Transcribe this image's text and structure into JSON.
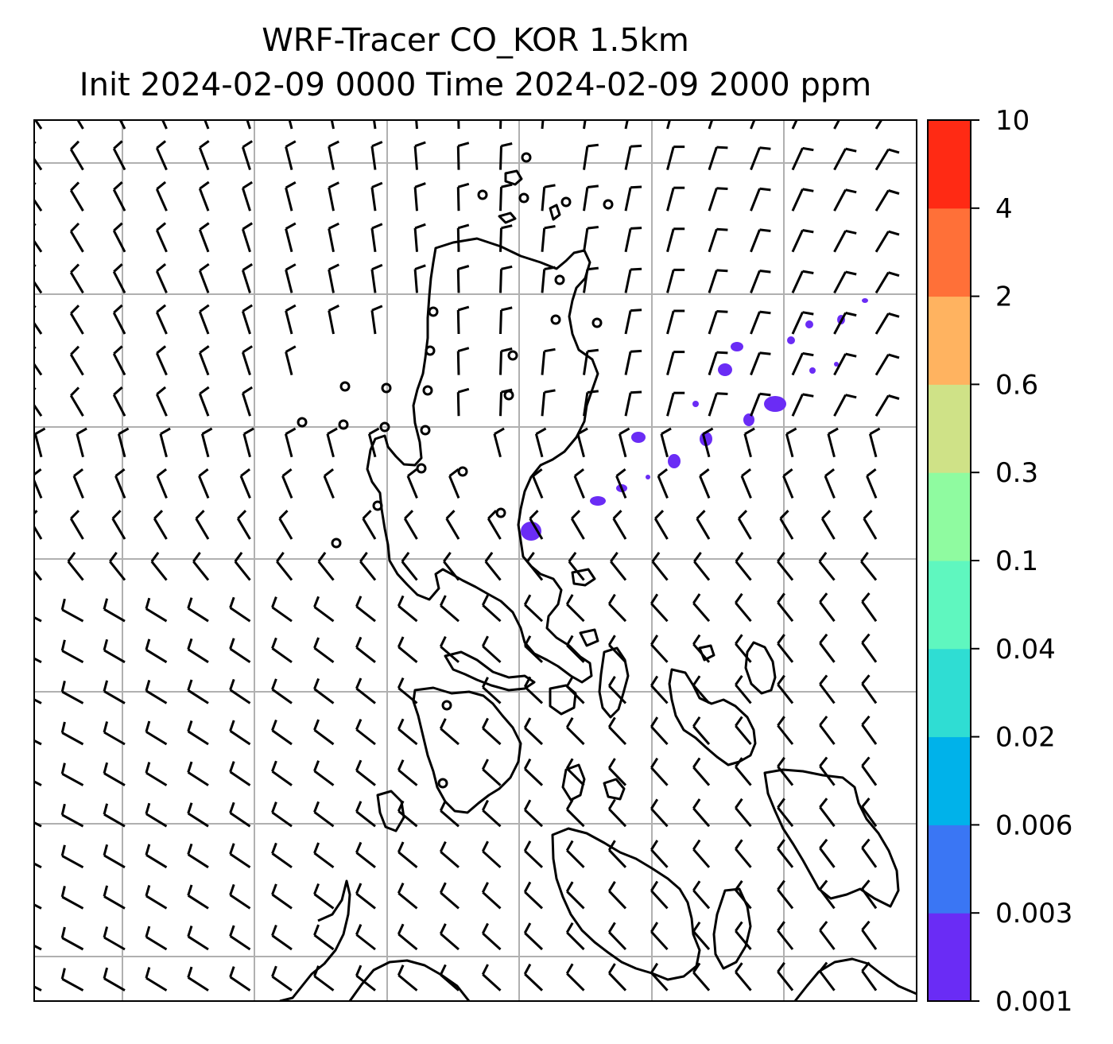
{
  "title": {
    "line1": "WRF-Tracer CO_KOR 1.5km",
    "line2": "Init 2024-02-09 0000 Time 2024-02-09 2000 ppm"
  },
  "colorbar": {
    "levels": [
      "0.001",
      "0.003",
      "0.006",
      "0.02",
      "0.04",
      "0.1",
      "0.3",
      "0.6",
      "2",
      "4",
      "10"
    ],
    "colors": [
      "#6a2cf5",
      "#3a76f4",
      "#00b2ea",
      "#2fddd3",
      "#5ff7bf",
      "#8ffba0",
      "#cfe287",
      "#ffb360",
      "#ff7038",
      "#ff2a14"
    ]
  },
  "map": {
    "grid": true,
    "background": "#ffffff",
    "coastline_color": "#000000",
    "gridline_color": "#b0b0b0",
    "wind_barb_color": "#000000",
    "tracer_color": "#6a2cf5"
  }
}
